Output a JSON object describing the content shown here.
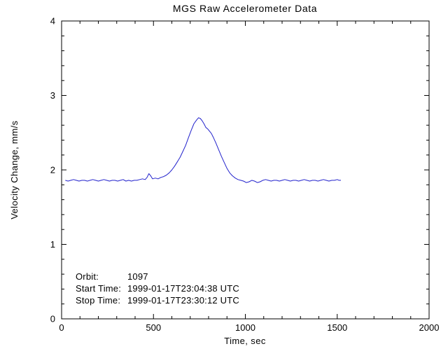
{
  "chart_data": {
    "type": "line",
    "title": "MGS Raw Accelerometer Data",
    "xlabel": "Time, sec",
    "ylabel": "Velocity Change, mm/s",
    "xlim": [
      0,
      2000
    ],
    "ylim": [
      0,
      4
    ],
    "x_ticks": [
      0,
      500,
      1000,
      1500,
      2000
    ],
    "y_ticks": [
      0,
      1,
      2,
      3,
      4
    ],
    "x_minor_per_major": 5,
    "y_minor_per_major": 5,
    "grid": false,
    "line_color": "#2222cc",
    "axis_color": "#000000",
    "background": "#ffffff",
    "series": [
      {
        "name": "velocity_change_mm_s",
        "points": [
          [
            20,
            1.86
          ],
          [
            35,
            1.85
          ],
          [
            50,
            1.86
          ],
          [
            65,
            1.87
          ],
          [
            80,
            1.86
          ],
          [
            95,
            1.85
          ],
          [
            110,
            1.86
          ],
          [
            125,
            1.86
          ],
          [
            140,
            1.85
          ],
          [
            155,
            1.86
          ],
          [
            170,
            1.87
          ],
          [
            185,
            1.86
          ],
          [
            200,
            1.85
          ],
          [
            215,
            1.86
          ],
          [
            230,
            1.87
          ],
          [
            245,
            1.86
          ],
          [
            260,
            1.85
          ],
          [
            275,
            1.86
          ],
          [
            290,
            1.86
          ],
          [
            305,
            1.85
          ],
          [
            320,
            1.86
          ],
          [
            335,
            1.87
          ],
          [
            350,
            1.85
          ],
          [
            365,
            1.86
          ],
          [
            380,
            1.85
          ],
          [
            395,
            1.86
          ],
          [
            410,
            1.86
          ],
          [
            425,
            1.87
          ],
          [
            440,
            1.88
          ],
          [
            455,
            1.87
          ],
          [
            465,
            1.9
          ],
          [
            475,
            1.95
          ],
          [
            485,
            1.92
          ],
          [
            495,
            1.88
          ],
          [
            510,
            1.89
          ],
          [
            525,
            1.88
          ],
          [
            540,
            1.9
          ],
          [
            555,
            1.91
          ],
          [
            570,
            1.93
          ],
          [
            585,
            1.96
          ],
          [
            600,
            2.0
          ],
          [
            615,
            2.05
          ],
          [
            630,
            2.11
          ],
          [
            645,
            2.17
          ],
          [
            660,
            2.25
          ],
          [
            675,
            2.33
          ],
          [
            690,
            2.43
          ],
          [
            705,
            2.53
          ],
          [
            720,
            2.62
          ],
          [
            735,
            2.67
          ],
          [
            745,
            2.7
          ],
          [
            755,
            2.69
          ],
          [
            765,
            2.66
          ],
          [
            775,
            2.62
          ],
          [
            785,
            2.57
          ],
          [
            795,
            2.55
          ],
          [
            805,
            2.52
          ],
          [
            815,
            2.49
          ],
          [
            825,
            2.44
          ],
          [
            840,
            2.36
          ],
          [
            855,
            2.27
          ],
          [
            870,
            2.18
          ],
          [
            885,
            2.1
          ],
          [
            900,
            2.02
          ],
          [
            915,
            1.96
          ],
          [
            930,
            1.92
          ],
          [
            945,
            1.89
          ],
          [
            960,
            1.87
          ],
          [
            975,
            1.86
          ],
          [
            990,
            1.85
          ],
          [
            1005,
            1.83
          ],
          [
            1020,
            1.84
          ],
          [
            1035,
            1.86
          ],
          [
            1050,
            1.85
          ],
          [
            1065,
            1.83
          ],
          [
            1080,
            1.84
          ],
          [
            1095,
            1.86
          ],
          [
            1110,
            1.87
          ],
          [
            1125,
            1.86
          ],
          [
            1140,
            1.85
          ],
          [
            1155,
            1.86
          ],
          [
            1170,
            1.86
          ],
          [
            1185,
            1.85
          ],
          [
            1200,
            1.86
          ],
          [
            1215,
            1.87
          ],
          [
            1230,
            1.86
          ],
          [
            1245,
            1.85
          ],
          [
            1260,
            1.86
          ],
          [
            1275,
            1.86
          ],
          [
            1290,
            1.85
          ],
          [
            1305,
            1.86
          ],
          [
            1320,
            1.87
          ],
          [
            1335,
            1.86
          ],
          [
            1350,
            1.85
          ],
          [
            1365,
            1.86
          ],
          [
            1380,
            1.86
          ],
          [
            1395,
            1.85
          ],
          [
            1410,
            1.86
          ],
          [
            1425,
            1.87
          ],
          [
            1440,
            1.86
          ],
          [
            1455,
            1.85
          ],
          [
            1470,
            1.86
          ],
          [
            1485,
            1.86
          ],
          [
            1500,
            1.87
          ],
          [
            1510,
            1.86
          ],
          [
            1520,
            1.86
          ]
        ]
      }
    ]
  },
  "annotations": {
    "rows": [
      {
        "label": "Orbit:",
        "value": "1097"
      },
      {
        "label": "Start Time:",
        "value": "1999-01-17T23:04:38 UTC"
      },
      {
        "label": "Stop Time:",
        "value": "1999-01-17T23:30:12 UTC"
      }
    ]
  }
}
